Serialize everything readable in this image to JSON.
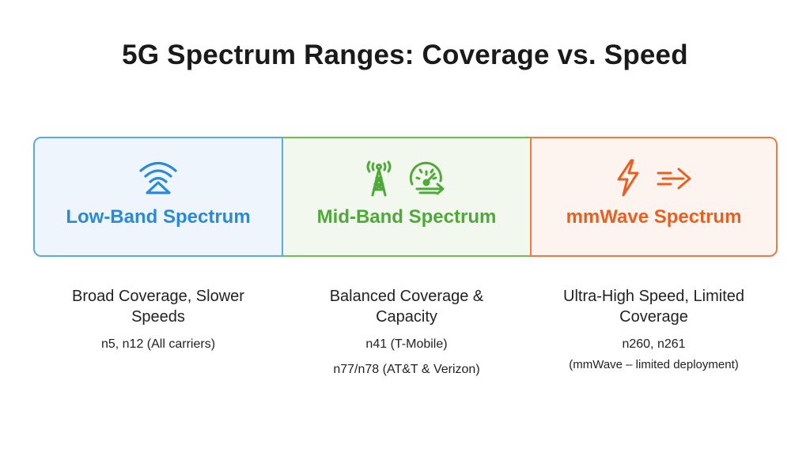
{
  "title": "5G Spectrum Ranges: Coverage vs. Speed",
  "colors": {
    "low": "#2a8ad6",
    "mid": "#4fa83a",
    "mmwave": "#ea5f1e"
  },
  "bands": [
    {
      "label": "Low-Band Spectrum",
      "icons": [
        "wifi-signal-icon"
      ],
      "headline": "Broad Coverage, Slower Speeds",
      "bands_line": "n5, n12 (All carriers)"
    },
    {
      "label": "Mid-Band Spectrum",
      "icons": [
        "cell-tower-icon",
        "speedometer-icon"
      ],
      "headline": "Balanced Coverage & Capacity",
      "bands_line": "n41 (T-Mobile)",
      "bands_line2": "n77/n78 (AT&T & Verizon)"
    },
    {
      "label": "mmWave Spectrum",
      "icons": [
        "lightning-icon",
        "fast-arrow-icon"
      ],
      "headline": "Ultra-High Speed, Limited Coverage",
      "bands_line": "n260, n261",
      "note": "(mmWave – limited deployment)"
    }
  ]
}
